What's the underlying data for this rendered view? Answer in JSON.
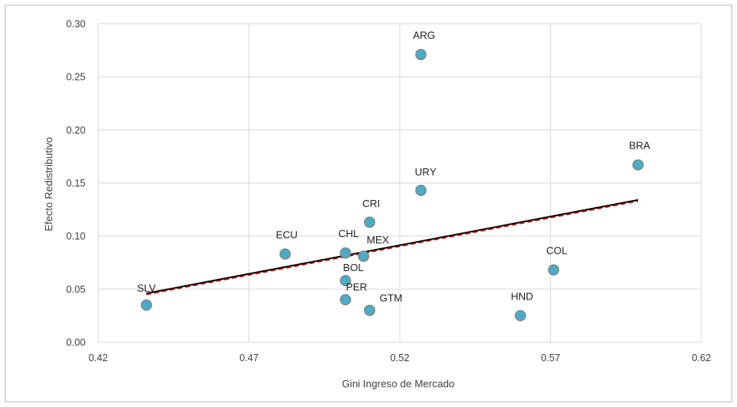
{
  "chart_data": {
    "type": "scatter",
    "title": "",
    "xlabel": "Gini Ingreso de Mercado",
    "ylabel": "Efecto Redistributivo",
    "xlim": [
      0.42,
      0.62
    ],
    "ylim": [
      0.0,
      0.3
    ],
    "x_ticks": [
      "0.42",
      "0.47",
      "0.52",
      "0.57",
      "0.62"
    ],
    "y_ticks": [
      "0.00",
      "0.05",
      "0.10",
      "0.15",
      "0.20",
      "0.25",
      "0.30"
    ],
    "grid": true,
    "legend": "none",
    "points": [
      {
        "label": "ARG",
        "x": 0.527,
        "y": 0.271
      },
      {
        "label": "BRA",
        "x": 0.599,
        "y": 0.167
      },
      {
        "label": "URY",
        "x": 0.527,
        "y": 0.143
      },
      {
        "label": "CRI",
        "x": 0.51,
        "y": 0.113
      },
      {
        "label": "ECU",
        "x": 0.482,
        "y": 0.083
      },
      {
        "label": "CHL",
        "x": 0.502,
        "y": 0.084
      },
      {
        "label": "MEX",
        "x": 0.508,
        "y": 0.081
      },
      {
        "label": "COL",
        "x": 0.571,
        "y": 0.068
      },
      {
        "label": "BOL",
        "x": 0.502,
        "y": 0.058
      },
      {
        "label": "SLV",
        "x": 0.436,
        "y": 0.035
      },
      {
        "label": "PER",
        "x": 0.502,
        "y": 0.04
      },
      {
        "label": "GTM",
        "x": 0.51,
        "y": 0.03
      },
      {
        "label": "HND",
        "x": 0.56,
        "y": 0.025
      }
    ],
    "trendline": {
      "x": [
        0.436,
        0.599
      ],
      "y": [
        0.046,
        0.134
      ]
    },
    "colors": {
      "point_fill": "#4bacc6",
      "point_stroke": "#7f7f7f",
      "trend_solid": "#000000",
      "trend_dashed": "#c00000",
      "grid": "#d9d9d9"
    }
  }
}
